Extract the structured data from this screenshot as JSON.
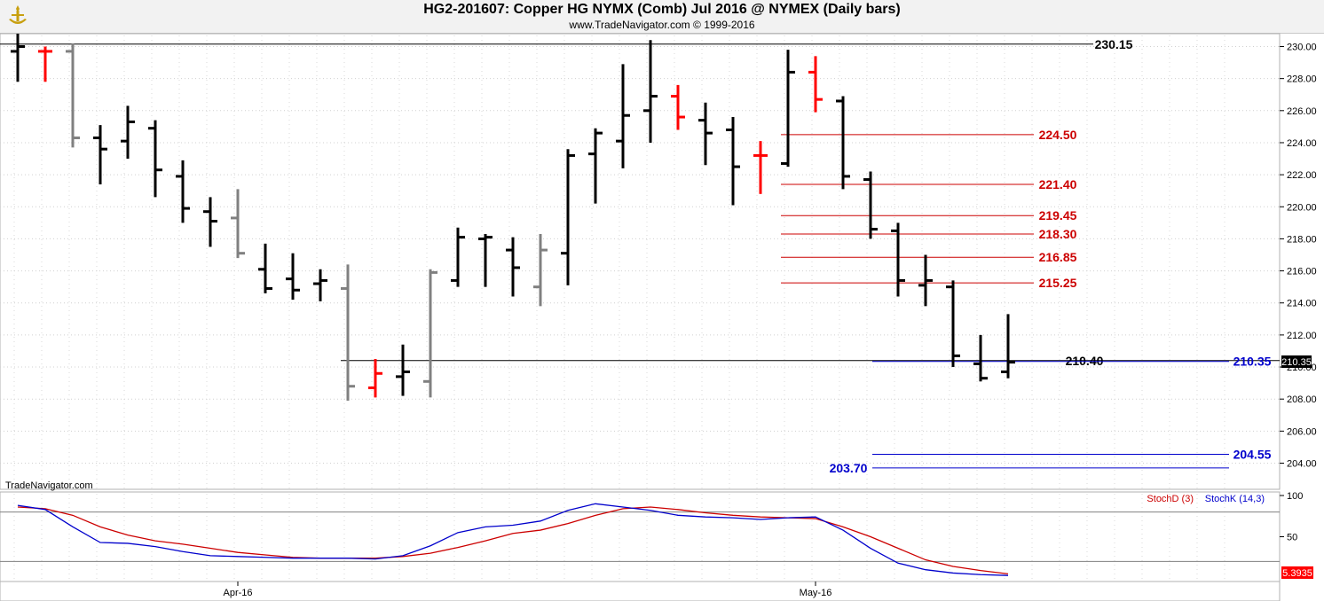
{
  "header": {
    "title": "HG2-201607:  Copper HG NYMX (Comb) Jul 2016 @ NYMEX  (Daily bars)",
    "subtitle": "www.TradeNavigator.com © 1999-2016"
  },
  "footer_brand": "TradeNavigator.com",
  "chart_data": [
    {
      "type": "ohlc",
      "ylim": [
        202.6,
        231.2
      ],
      "y_ticks": [
        "204.00",
        "206.00",
        "208.00",
        "210.00",
        "212.00",
        "214.00",
        "216.00",
        "218.00",
        "220.00",
        "222.00",
        "224.00",
        "226.00",
        "228.00",
        "230.00"
      ],
      "x_labels": [
        {
          "label": "Apr-16",
          "index": 8
        },
        {
          "label": "May-16",
          "index": 29
        }
      ],
      "colors": {
        "up": "#000000",
        "down": "#000000",
        "flat": "#808080",
        "red": "#ff0000"
      },
      "bars": [
        {
          "o": 229.7,
          "h": 230.8,
          "l": 227.8,
          "c": 230.0,
          "col": "black"
        },
        {
          "o": 229.7,
          "h": 230.0,
          "l": 227.8,
          "c": 229.7,
          "col": "red"
        },
        {
          "o": 229.7,
          "h": 230.2,
          "l": 223.7,
          "c": 224.3,
          "col": "gray"
        },
        {
          "o": 224.3,
          "h": 225.1,
          "l": 221.4,
          "c": 223.6,
          "col": "black"
        },
        {
          "o": 224.1,
          "h": 226.3,
          "l": 223.0,
          "c": 225.3,
          "col": "black"
        },
        {
          "o": 224.9,
          "h": 225.4,
          "l": 220.6,
          "c": 222.3,
          "col": "black"
        },
        {
          "o": 221.9,
          "h": 222.9,
          "l": 219.0,
          "c": 219.9,
          "col": "black"
        },
        {
          "o": 219.7,
          "h": 220.6,
          "l": 217.5,
          "c": 219.1,
          "col": "black"
        },
        {
          "o": 219.3,
          "h": 221.1,
          "l": 216.8,
          "c": 217.1,
          "col": "gray"
        },
        {
          "o": 216.1,
          "h": 217.7,
          "l": 214.6,
          "c": 214.9,
          "col": "black"
        },
        {
          "o": 215.5,
          "h": 217.1,
          "l": 214.2,
          "c": 214.8,
          "col": "black"
        },
        {
          "o": 215.2,
          "h": 216.1,
          "l": 214.1,
          "c": 215.4,
          "col": "black"
        },
        {
          "o": 214.9,
          "h": 216.4,
          "l": 207.9,
          "c": 208.8,
          "col": "gray"
        },
        {
          "o": 208.7,
          "h": 210.5,
          "l": 208.1,
          "c": 209.6,
          "col": "red"
        },
        {
          "o": 209.4,
          "h": 211.4,
          "l": 208.2,
          "c": 209.7,
          "col": "black"
        },
        {
          "o": 209.1,
          "h": 216.1,
          "l": 208.1,
          "c": 215.9,
          "col": "gray"
        },
        {
          "o": 215.4,
          "h": 218.7,
          "l": 215.0,
          "c": 218.1,
          "col": "black"
        },
        {
          "o": 218.0,
          "h": 218.3,
          "l": 215.0,
          "c": 218.1,
          "col": "black"
        },
        {
          "o": 217.3,
          "h": 218.1,
          "l": 214.4,
          "c": 216.2,
          "col": "black"
        },
        {
          "o": 215.0,
          "h": 218.3,
          "l": 213.8,
          "c": 217.3,
          "col": "gray"
        },
        {
          "o": 217.1,
          "h": 223.6,
          "l": 215.1,
          "c": 223.2,
          "col": "black"
        },
        {
          "o": 223.3,
          "h": 224.9,
          "l": 220.2,
          "c": 224.6,
          "col": "black"
        },
        {
          "o": 224.1,
          "h": 228.9,
          "l": 222.4,
          "c": 225.7,
          "col": "black"
        },
        {
          "o": 226.0,
          "h": 230.4,
          "l": 224.0,
          "c": 226.9,
          "col": "black"
        },
        {
          "o": 226.9,
          "h": 227.6,
          "l": 224.8,
          "c": 225.6,
          "col": "red"
        },
        {
          "o": 225.4,
          "h": 226.5,
          "l": 222.6,
          "c": 224.6,
          "col": "black"
        },
        {
          "o": 224.8,
          "h": 225.6,
          "l": 220.1,
          "c": 222.5,
          "col": "black"
        },
        {
          "o": 223.2,
          "h": 224.1,
          "l": 220.8,
          "c": 223.2,
          "col": "red"
        },
        {
          "o": 222.7,
          "h": 229.8,
          "l": 222.5,
          "c": 228.4,
          "col": "black"
        },
        {
          "o": 228.4,
          "h": 229.4,
          "l": 225.9,
          "c": 226.7,
          "col": "red"
        },
        {
          "o": 226.6,
          "h": 226.9,
          "l": 221.1,
          "c": 221.9,
          "col": "black"
        },
        {
          "o": 221.7,
          "h": 222.2,
          "l": 218.0,
          "c": 218.6,
          "col": "black"
        },
        {
          "o": 218.5,
          "h": 219.0,
          "l": 214.4,
          "c": 215.4,
          "col": "black"
        },
        {
          "o": 215.1,
          "h": 217.0,
          "l": 213.8,
          "c": 215.4,
          "col": "black"
        },
        {
          "o": 215.0,
          "h": 215.4,
          "l": 210.0,
          "c": 210.7,
          "col": "black"
        },
        {
          "o": 210.2,
          "h": 212.0,
          "l": 209.1,
          "c": 209.3,
          "col": "black"
        },
        {
          "o": 209.7,
          "h": 213.3,
          "l": 209.3,
          "c": 210.3,
          "col": "black"
        }
      ],
      "levels": [
        {
          "value": 230.15,
          "label": "230.15",
          "color": "#000000",
          "from_index": 0
        },
        {
          "value": 224.5,
          "label": "224.50",
          "color": "#cc0000",
          "from_index": 28
        },
        {
          "value": 221.4,
          "label": "221.40",
          "color": "#cc0000",
          "from_index": 28
        },
        {
          "value": 219.45,
          "label": "219.45",
          "color": "#cc0000",
          "from_index": 28
        },
        {
          "value": 218.3,
          "label": "218.30",
          "color": "#cc0000",
          "from_index": 28
        },
        {
          "value": 216.85,
          "label": "216.85",
          "color": "#cc0000",
          "from_index": 28
        },
        {
          "value": 215.25,
          "label": "215.25",
          "color": "#cc0000",
          "from_index": 28
        },
        {
          "value": 210.4,
          "label": "210.40",
          "color": "#000000",
          "from_index": 12
        },
        {
          "value": 210.35,
          "label": "210.35",
          "color": "#0000cc",
          "from_index": 31
        },
        {
          "value": 204.55,
          "label": "204.55",
          "color": "#0000cc",
          "from_index": 31
        },
        {
          "value": 203.7,
          "label": "203.70",
          "color": "#0000cc",
          "from_index": 31
        }
      ],
      "last_price_tag": "210.35"
    },
    {
      "type": "line",
      "ylim": [
        0,
        100
      ],
      "y_ticks": [
        "100",
        "50"
      ],
      "legend_placement": "top-right",
      "last_value_tag": "5.3935",
      "series": [
        {
          "name": "StochD (3)",
          "color": "#cc0000",
          "values": [
            86,
            84,
            76,
            62,
            52,
            45,
            41,
            36,
            31,
            28,
            25,
            24,
            24,
            24,
            26,
            30,
            37,
            45,
            54,
            58,
            66,
            76,
            84,
            86,
            83,
            79,
            76,
            74,
            73,
            72,
            62,
            50,
            36,
            22,
            14,
            9,
            5
          ]
        },
        {
          "name": "StochK (14,3)",
          "color": "#0000cc",
          "values": [
            88,
            83,
            62,
            43,
            42,
            38,
            32,
            27,
            26,
            25,
            24,
            24,
            24,
            23,
            27,
            39,
            55,
            62,
            64,
            69,
            82,
            90,
            86,
            82,
            76,
            74,
            73,
            71,
            73,
            74,
            58,
            36,
            18,
            10,
            6,
            4,
            3
          ]
        }
      ]
    }
  ]
}
